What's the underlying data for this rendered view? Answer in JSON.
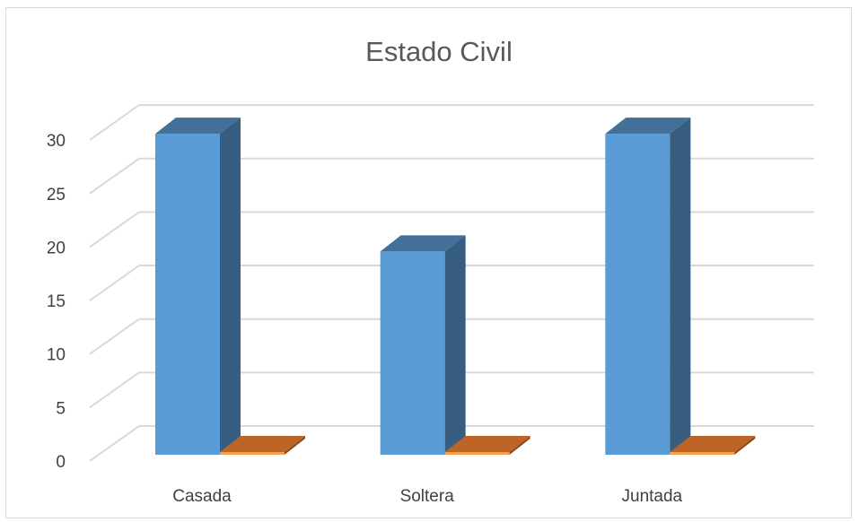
{
  "chart_data": {
    "type": "bar",
    "title": "Estado Civil",
    "categories": [
      "Casada",
      "Soltera",
      "Juntada"
    ],
    "series": [
      {
        "values": [
          30,
          19,
          30
        ],
        "color": "#5b9bd5"
      },
      {
        "values": [
          0,
          0,
          0
        ],
        "color": "#ed7d31"
      }
    ],
    "ylim": [
      0,
      30
    ],
    "yticks": [
      "0",
      "5",
      "10",
      "15",
      "20",
      "25",
      "30"
    ],
    "grid": true,
    "style": "3d-column"
  }
}
